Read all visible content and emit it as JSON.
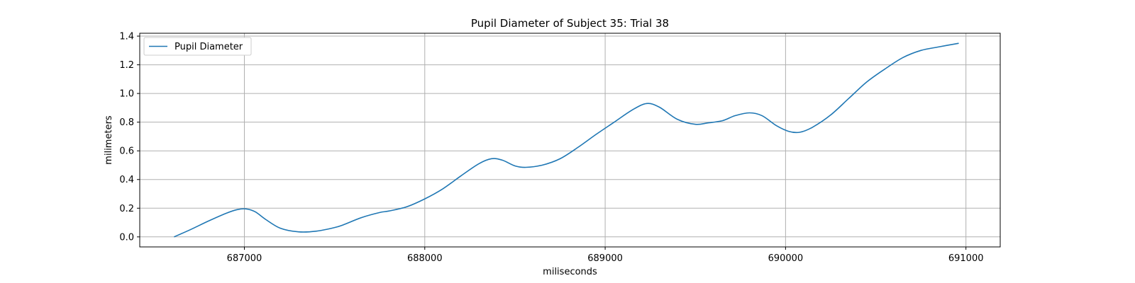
{
  "chart_data": {
    "type": "line",
    "title": "Pupil Diameter of Subject 35: Trial 38",
    "xlabel": "miliseconds",
    "ylabel": "milimeters",
    "xlim": [
      686420,
      691190
    ],
    "ylim": [
      -0.07,
      1.42
    ],
    "xticks": [
      687000,
      688000,
      689000,
      690000,
      691000
    ],
    "yticks": [
      0.0,
      0.2,
      0.4,
      0.6,
      0.8,
      1.0,
      1.2,
      1.4
    ],
    "xtick_labels": [
      "687000",
      "688000",
      "689000",
      "690000",
      "691000"
    ],
    "ytick_labels": [
      "0.0",
      "0.2",
      "0.4",
      "0.6",
      "0.8",
      "1.0",
      "1.2",
      "1.4"
    ],
    "grid": true,
    "legend_position": "upper-left",
    "colors": {
      "series": "#1f77b4",
      "grid": "#b0b0b0",
      "frame": "#000000"
    },
    "series": [
      {
        "name": "Pupil Diameter",
        "x": [
          686610,
          686700,
          686800,
          686900,
          686960,
          687010,
          687060,
          687120,
          687200,
          687300,
          687400,
          687500,
          687550,
          687650,
          687750,
          687800,
          687900,
          688000,
          688100,
          688200,
          688300,
          688370,
          688430,
          688500,
          688560,
          688650,
          688750,
          688850,
          688950,
          689050,
          689150,
          689230,
          689300,
          689400,
          689500,
          689570,
          689650,
          689720,
          689800,
          689870,
          689950,
          690020,
          690080,
          690150,
          690250,
          690350,
          690450,
          690550,
          690650,
          690750,
          690850,
          690960
        ],
        "y": [
          0.0,
          0.05,
          0.11,
          0.165,
          0.19,
          0.195,
          0.175,
          0.12,
          0.06,
          0.035,
          0.04,
          0.065,
          0.085,
          0.135,
          0.17,
          0.18,
          0.21,
          0.265,
          0.335,
          0.425,
          0.51,
          0.545,
          0.535,
          0.495,
          0.485,
          0.5,
          0.545,
          0.625,
          0.715,
          0.8,
          0.885,
          0.93,
          0.905,
          0.82,
          0.785,
          0.795,
          0.81,
          0.845,
          0.865,
          0.845,
          0.775,
          0.735,
          0.73,
          0.765,
          0.85,
          0.965,
          1.08,
          1.17,
          1.25,
          1.3,
          1.325,
          1.35
        ]
      }
    ]
  }
}
